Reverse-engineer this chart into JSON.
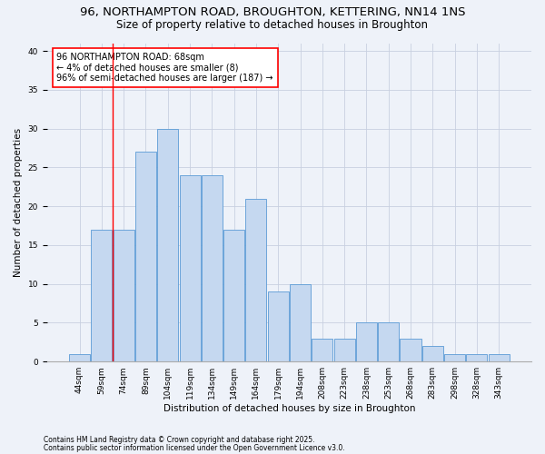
{
  "title1": "96, NORTHAMPTON ROAD, BROUGHTON, KETTERING, NN14 1NS",
  "title2": "Size of property relative to detached houses in Broughton",
  "xlabel": "Distribution of detached houses by size in Broughton",
  "ylabel": "Number of detached properties",
  "categories": [
    "44sqm",
    "59sqm",
    "74sqm",
    "89sqm",
    "104sqm",
    "119sqm",
    "134sqm",
    "149sqm",
    "164sqm",
    "179sqm",
    "194sqm",
    "208sqm",
    "223sqm",
    "238sqm",
    "253sqm",
    "268sqm",
    "283sqm",
    "298sqm",
    "328sqm",
    "343sqm"
  ],
  "values": [
    1,
    17,
    17,
    27,
    30,
    24,
    24,
    17,
    21,
    9,
    10,
    3,
    3,
    5,
    5,
    3,
    2,
    1,
    1,
    1
  ],
  "bar_color": "#c5d8f0",
  "bar_edge_color": "#5b9bd5",
  "red_line_x": 1.5,
  "annotation_line1": "96 NORTHAMPTON ROAD: 68sqm",
  "annotation_line2": "← 4% of detached houses are smaller (8)",
  "annotation_line3": "96% of semi-detached houses are larger (187) →",
  "ylim": [
    0,
    41
  ],
  "yticks": [
    0,
    5,
    10,
    15,
    20,
    25,
    30,
    35,
    40
  ],
  "footer1": "Contains HM Land Registry data © Crown copyright and database right 2025.",
  "footer2": "Contains public sector information licensed under the Open Government Licence v3.0.",
  "bg_color": "#eef2f9",
  "grid_color": "#c8d0e0",
  "title1_fontsize": 9.5,
  "title2_fontsize": 8.5,
  "axis_label_fontsize": 7.5,
  "tick_fontsize": 6.5,
  "annotation_fontsize": 7,
  "footer_fontsize": 5.5
}
